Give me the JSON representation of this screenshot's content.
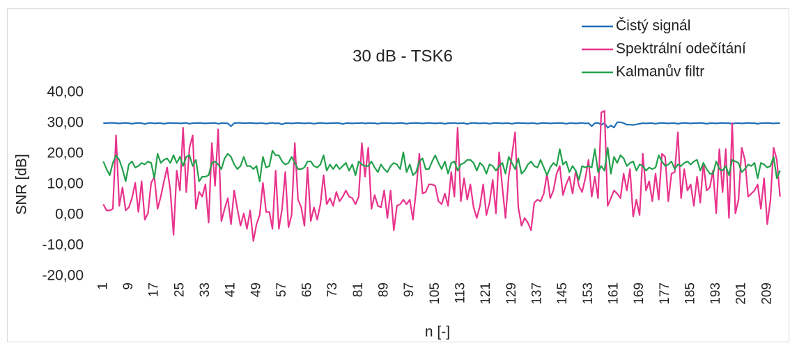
{
  "chart_data": {
    "type": "line",
    "title": "30 dB - TSK6",
    "x_label": "n [-]",
    "y_label": "SNR [dB]",
    "legend": "top-right",
    "grid": false,
    "xlim": [
      0.5,
      213.5
    ],
    "xticks": [
      1,
      9,
      17,
      25,
      33,
      41,
      49,
      57,
      65,
      73,
      81,
      89,
      97,
      105,
      113,
      121,
      129,
      137,
      145,
      153,
      161,
      169,
      177,
      185,
      193,
      201,
      209
    ],
    "ylim": [
      -20,
      40
    ],
    "yticks": [
      {
        "value": -20,
        "label": "-20,00"
      },
      {
        "value": -10,
        "label": "-10,00"
      },
      {
        "value": 0,
        "label": "0,00"
      },
      {
        "value": 10,
        "label": "10,00"
      },
      {
        "value": 20,
        "label": "20,00"
      },
      {
        "value": 30,
        "label": "30,00"
      },
      {
        "value": 40,
        "label": "40,00"
      }
    ],
    "x": [
      1,
      2,
      3,
      4,
      5,
      6,
      7,
      8,
      9,
      10,
      11,
      12,
      13,
      14,
      15,
      16,
      17,
      18,
      19,
      20,
      21,
      22,
      23,
      24,
      25,
      26,
      27,
      28,
      29,
      30,
      31,
      32,
      33,
      34,
      35,
      36,
      37,
      38,
      39,
      40,
      41,
      42,
      43,
      44,
      45,
      46,
      47,
      48,
      49,
      50,
      51,
      52,
      53,
      54,
      55,
      56,
      57,
      58,
      59,
      60,
      61,
      62,
      63,
      64,
      65,
      66,
      67,
      68,
      69,
      70,
      71,
      72,
      73,
      74,
      75,
      76,
      77,
      78,
      79,
      80,
      81,
      82,
      83,
      84,
      85,
      86,
      87,
      88,
      89,
      90,
      91,
      92,
      93,
      94,
      95,
      96,
      97,
      98,
      99,
      100,
      101,
      102,
      103,
      104,
      105,
      106,
      107,
      108,
      109,
      110,
      111,
      112,
      113,
      114,
      115,
      116,
      117,
      118,
      119,
      120,
      121,
      122,
      123,
      124,
      125,
      126,
      127,
      128,
      129,
      130,
      131,
      132,
      133,
      134,
      135,
      136,
      137,
      138,
      139,
      140,
      141,
      142,
      143,
      144,
      145,
      146,
      147,
      148,
      149,
      150,
      151,
      152,
      153,
      154,
      155,
      156,
      157,
      158,
      159,
      160,
      161,
      162,
      163,
      164,
      165,
      166,
      167,
      168,
      169,
      170,
      171,
      172,
      173,
      174,
      175,
      176,
      177,
      178,
      179,
      180,
      181,
      182,
      183,
      184,
      185,
      186,
      187,
      188,
      189,
      190,
      191,
      192,
      193,
      194,
      195,
      196,
      197,
      198,
      199,
      200,
      201,
      202,
      203,
      204,
      205,
      206,
      207,
      208,
      209,
      210,
      211,
      212,
      213
    ],
    "series": [
      {
        "name": "Čistý signál",
        "color": "#1f6fb8",
        "values": [
          30.0,
          30.0,
          30.1,
          30.1,
          30.0,
          29.9,
          30.0,
          30.1,
          30.0,
          29.8,
          30.0,
          30.1,
          30.0,
          29.7,
          30.0,
          30.1,
          29.9,
          30.0,
          30.0,
          29.8,
          30.0,
          30.1,
          30.0,
          30.0,
          29.9,
          30.0,
          30.1,
          29.8,
          30.0,
          30.0,
          30.1,
          30.0,
          29.9,
          30.0,
          30.0,
          30.1,
          29.8,
          30.0,
          30.0,
          29.9,
          29.0,
          30.0,
          30.1,
          30.1,
          30.0,
          30.0,
          30.1,
          30.0,
          29.9,
          30.0,
          30.0,
          29.8,
          30.0,
          30.1,
          29.9,
          30.0,
          29.6,
          30.0,
          30.0,
          29.9,
          30.0,
          30.1,
          30.0,
          29.9,
          30.0,
          30.0,
          29.8,
          30.0,
          30.1,
          30.0,
          29.9,
          30.0,
          30.0,
          30.1,
          30.0,
          29.7,
          30.0,
          30.0,
          29.9,
          30.0,
          30.0,
          30.1,
          29.9,
          30.0,
          30.0,
          30.0,
          29.8,
          30.0,
          30.1,
          30.0,
          30.0,
          29.9,
          30.0,
          30.1,
          30.0,
          29.8,
          30.0,
          30.0,
          30.1,
          30.0,
          29.9,
          30.0,
          30.1,
          30.0,
          29.9,
          30.0,
          30.0,
          29.8,
          30.0,
          30.0,
          30.1,
          29.9,
          30.0,
          30.0,
          29.7,
          30.0,
          30.1,
          30.0,
          29.9,
          30.0,
          30.0,
          29.8,
          30.0,
          30.1,
          30.0,
          29.9,
          30.0,
          30.0,
          29.8,
          30.0,
          30.1,
          30.0,
          30.0,
          29.9,
          30.0,
          30.0,
          29.8,
          30.0,
          30.1,
          30.0,
          29.9,
          30.0,
          30.0,
          30.1,
          30.0,
          29.8,
          30.0,
          30.0,
          29.9,
          30.0,
          30.1,
          29.9,
          30.0,
          29.0,
          30.0,
          30.1,
          29.5,
          30.0,
          28.5,
          29.2,
          28.6,
          30.3,
          30.3,
          30.0,
          29.5,
          29.5,
          29.4,
          29.6,
          29.8,
          30.0,
          29.9,
          30.0,
          30.0,
          29.8,
          30.0,
          30.1,
          30.0,
          29.9,
          30.0,
          30.0,
          29.8,
          30.0,
          30.1,
          30.0,
          29.9,
          30.0,
          30.0,
          30.1,
          30.0,
          29.8,
          30.0,
          30.0,
          29.9,
          30.0,
          30.1,
          30.0,
          30.0,
          29.8,
          30.0,
          30.0,
          29.9,
          30.0,
          30.1,
          30.0,
          30.0,
          29.8,
          30.0,
          30.0,
          30.1,
          30.0,
          29.9,
          30.0,
          30.0
        ]
      },
      {
        "name": "Spektrální odečítání",
        "color": "#e8338c",
        "values": [
          3.5,
          1.5,
          1.5,
          2.0,
          26.0,
          3.0,
          9.0,
          1.5,
          2.5,
          5.5,
          10.5,
          1.0,
          11.0,
          -1.5,
          0.5,
          10.5,
          12.5,
          2.0,
          6.0,
          11.0,
          15.5,
          8.0,
          -6.5,
          14.5,
          8.0,
          28.5,
          7.5,
          22.0,
          26.0,
          2.0,
          7.5,
          6.0,
          10.0,
          -2.5,
          23.5,
          9.5,
          28.0,
          -2.0,
          2.0,
          5.5,
          -3.0,
          8.0,
          2.0,
          -3.5,
          0.5,
          -4.5,
          1.5,
          -8.5,
          -3.0,
          0.0,
          10.5,
          1.0,
          1.0,
          -4.5,
          14.5,
          -4.5,
          2.0,
          14.0,
          -4.0,
          0.0,
          23.5,
          5.0,
          2.5,
          -3.5,
          15.5,
          -2.0,
          2.5,
          -1.5,
          3.5,
          13.0,
          3.5,
          5.5,
          3.0,
          7.5,
          4.5,
          6.0,
          8.0,
          6.0,
          5.5,
          3.5,
          6.0,
          23.5,
          12.5,
          22.0,
          2.0,
          6.5,
          3.0,
          2.5,
          8.0,
          -1.0,
          8.0,
          -5.0,
          3.0,
          3.5,
          5.0,
          3.5,
          5.0,
          -1.5,
          8.0,
          20.0,
          7.0,
          7.5,
          10.0,
          10.0,
          9.5,
          4.5,
          3.5,
          7.0,
          3.0,
          14.0,
          6.0,
          28.5,
          4.5,
          12.0,
          5.0,
          10.0,
          2.5,
          -1.0,
          3.0,
          10.0,
          0.0,
          4.0,
          11.5,
          0.5,
          20.5,
          9.0,
          -1.0,
          12.5,
          19.5,
          27.0,
          2.5,
          -3.5,
          -1.0,
          -2.5,
          -5.0,
          4.0,
          5.0,
          4.5,
          7.0,
          13.5,
          5.5,
          8.0,
          13.5,
          16.0,
          6.5,
          10.0,
          12.5,
          7.0,
          14.5,
          9.5,
          7.5,
          12.0,
          18.0,
          6.0,
          12.5,
          5.5,
          33.5,
          34.0,
          3.0,
          5.5,
          8.0,
          7.0,
          5.5,
          13.5,
          8.0,
          15.0,
          -0.5,
          5.0,
          0.0,
          20.0,
          8.0,
          11.0,
          4.5,
          13.5,
          5.0,
          20.0,
          19.0,
          4.5,
          13.5,
          14.0,
          27.0,
          5.5,
          15.0,
          8.0,
          10.0,
          3.0,
          12.5,
          4.0,
          17.0,
          8.0,
          9.0,
          14.5,
          0.5,
          21.5,
          7.5,
          21.5,
          -1.0,
          30.0,
          0.5,
          5.0,
          22.0,
          18.0,
          6.0,
          7.0,
          8.0,
          10.0,
          2.0,
          12.0,
          -3.0,
          5.0,
          22.0,
          18.0,
          6.0
        ]
      },
      {
        "name": "Kalmanův filtr",
        "color": "#22a04b",
        "values": [
          17.5,
          15.0,
          13.0,
          17.0,
          19.5,
          18.0,
          15.0,
          11.0,
          16.5,
          17.5,
          15.5,
          16.0,
          17.0,
          16.5,
          17.5,
          17.0,
          12.0,
          20.0,
          17.0,
          18.0,
          18.5,
          17.0,
          19.5,
          17.0,
          19.0,
          16.0,
          19.0,
          19.5,
          16.0,
          18.0,
          11.0,
          12.5,
          12.5,
          13.0,
          17.0,
          17.5,
          16.5,
          15.0,
          18.5,
          20.0,
          19.0,
          16.5,
          15.0,
          16.0,
          19.0,
          16.0,
          16.0,
          15.0,
          16.0,
          11.0,
          19.0,
          15.5,
          16.0,
          21.0,
          19.5,
          19.5,
          17.5,
          16.5,
          17.0,
          19.0,
          17.0,
          15.0,
          15.0,
          15.5,
          17.5,
          17.5,
          16.0,
          15.5,
          16.5,
          19.5,
          14.5,
          16.5,
          15.0,
          16.5,
          15.0,
          16.0,
          17.0,
          14.5,
          16.5,
          13.0,
          17.5,
          16.5,
          16.0,
          16.0,
          17.5,
          15.5,
          14.0,
          16.5,
          15.0,
          14.0,
          16.0,
          17.0,
          16.5,
          15.0,
          20.5,
          14.0,
          16.5,
          13.0,
          14.0,
          17.5,
          18.5,
          15.0,
          15.0,
          17.5,
          19.5,
          17.0,
          15.0,
          17.5,
          13.5,
          17.0,
          17.5,
          14.5,
          16.5,
          17.0,
          18.0,
          18.0,
          17.0,
          14.5,
          17.0,
          16.0,
          13.5,
          16.5,
          16.0,
          14.5,
          16.0,
          17.0,
          13.5,
          19.0,
          17.0,
          15.0,
          18.5,
          13.5,
          14.5,
          16.5,
          17.5,
          16.0,
          15.5,
          18.0,
          15.5,
          13.0,
          15.5,
          17.0,
          16.0,
          21.5,
          16.5,
          17.5,
          14.0,
          16.0,
          14.5,
          11.5,
          16.0,
          15.5,
          16.0,
          15.5,
          21.5,
          14.0,
          16.0,
          14.5,
          22.0,
          13.5,
          19.0,
          17.0,
          19.5,
          18.5,
          16.0,
          17.0,
          17.5,
          14.5,
          16.5,
          16.0,
          14.5,
          15.5,
          15.0,
          15.5,
          19.5,
          17.5,
          16.0,
          16.5,
          17.5,
          15.0,
          16.5,
          16.0,
          17.0,
          17.5,
          16.5,
          17.5,
          18.0,
          14.5,
          17.0,
          15.0,
          13.5,
          13.5,
          17.5,
          15.0,
          14.5,
          16.0,
          13.0,
          18.0,
          17.5,
          17.0,
          14.0,
          15.0,
          16.5,
          16.0,
          17.0,
          12.0,
          17.0,
          16.5,
          15.5,
          16.0,
          19.0,
          12.0,
          14.5
        ]
      }
    ]
  }
}
